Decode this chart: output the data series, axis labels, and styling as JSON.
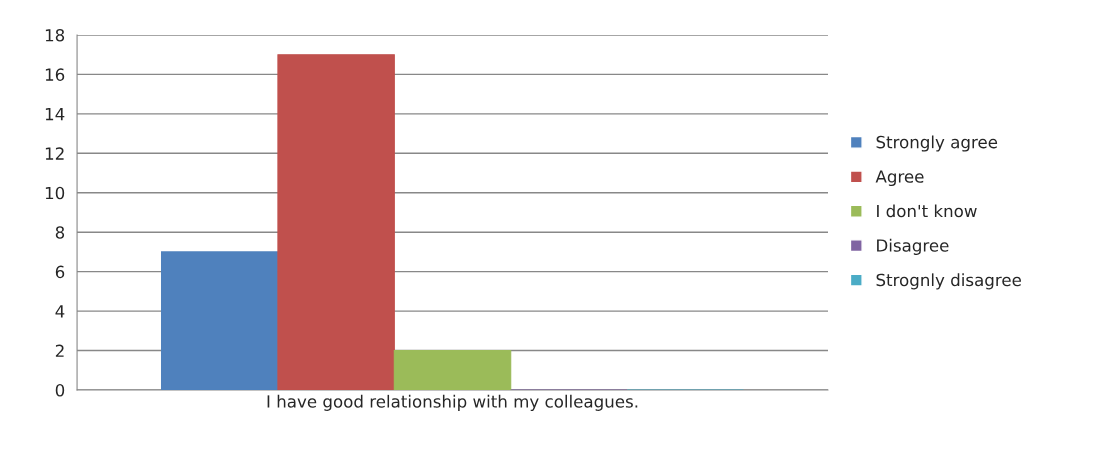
{
  "chart_data": {
    "type": "bar",
    "categories": [
      "I have good relationship with my colleagues."
    ],
    "series": [
      {
        "name": "Strongly agree",
        "color": "#4f81bd",
        "values": [
          7
        ]
      },
      {
        "name": "Agree",
        "color": "#c0504d",
        "values": [
          17
        ]
      },
      {
        "name": "I don't know",
        "color": "#9bbb59",
        "values": [
          2
        ]
      },
      {
        "name": "Disagree",
        "color": "#8064a2",
        "values": [
          0
        ]
      },
      {
        "name": "Strognly disagree",
        "color": "#4bacc6",
        "values": [
          0
        ]
      }
    ],
    "ylim": [
      0,
      18
    ],
    "yticks": [
      0,
      2,
      4,
      6,
      8,
      10,
      12,
      14,
      16,
      18
    ],
    "grid": "y",
    "legend": "right"
  }
}
